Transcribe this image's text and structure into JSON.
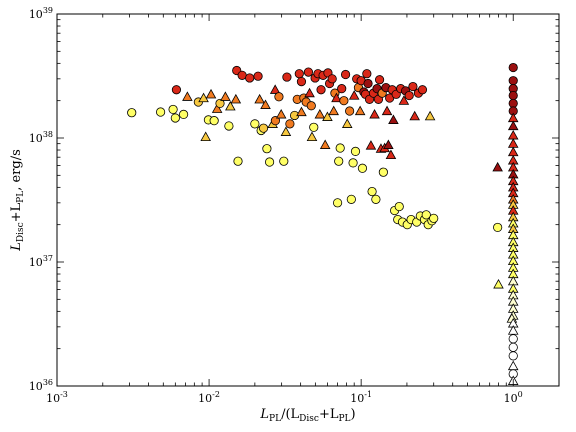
{
  "chart_data": {
    "type": "scatter",
    "title": "",
    "xscale": "log",
    "yscale": "log",
    "xlim": [
      0.001,
      2.0
    ],
    "ylim": [
      1e+36,
      1e+39
    ],
    "grid": false,
    "legend": "none",
    "xlabel": {
      "main": "L",
      "sub": "PL",
      "rest": "/(L",
      "sub2": "Disc",
      "rest2": "+L",
      "sub3": "PL",
      "rest3": ")"
    },
    "ylabel": {
      "p1": "L",
      "s1": "Disc",
      "p2": "+L",
      "s2": "PL",
      "p3": ", erg/s"
    },
    "xticks": [
      {
        "value": 0.001,
        "base": "10",
        "exp": "-3"
      },
      {
        "value": 0.01,
        "base": "10",
        "exp": "-2"
      },
      {
        "value": 0.1,
        "base": "10",
        "exp": "-1"
      },
      {
        "value": 1,
        "base": "10",
        "exp": "0"
      }
    ],
    "yticks": [
      {
        "value": 1e+36,
        "base": "10",
        "exp": "36"
      },
      {
        "value": 1e+37,
        "base": "10",
        "exp": "37"
      },
      {
        "value": 1e+38,
        "base": "10",
        "exp": "38"
      },
      {
        "value": 1e+39,
        "base": "10",
        "exp": "39"
      }
    ],
    "colors": {
      "dark_red": "#9b1010",
      "red": "#d92818",
      "orange": "#f07a20",
      "yellow_orange": "#f7c840",
      "yellow": "#ffff66",
      "pale": "#ffffd0",
      "white": "#ffffff"
    },
    "points": [
      {
        "x": 0.0031,
        "y": 1.6e+38,
        "m": "o",
        "c": "#ffff66"
      },
      {
        "x": 0.0048,
        "y": 1.62e+38,
        "m": "o",
        "c": "#ffff66"
      },
      {
        "x": 0.0058,
        "y": 1.7e+38,
        "m": "o",
        "c": "#ffff66"
      },
      {
        "x": 0.006,
        "y": 1.45e+38,
        "m": "o",
        "c": "#ffff66"
      },
      {
        "x": 0.0068,
        "y": 1.55e+38,
        "m": "o",
        "c": "#ffff66"
      },
      {
        "x": 0.0061,
        "y": 2.45e+38,
        "m": "o",
        "c": "#d92818"
      },
      {
        "x": 0.0072,
        "y": 2.15e+38,
        "m": "^",
        "c": "#f07a20"
      },
      {
        "x": 0.0085,
        "y": 1.95e+38,
        "m": "o",
        "c": "#f7c840"
      },
      {
        "x": 0.0092,
        "y": 2.1e+38,
        "m": "^",
        "c": "#f7c840"
      },
      {
        "x": 0.0095,
        "y": 1.02e+38,
        "m": "^",
        "c": "#f7c840"
      },
      {
        "x": 0.0099,
        "y": 1.4e+38,
        "m": "o",
        "c": "#ffff66"
      },
      {
        "x": 0.0103,
        "y": 2.25e+38,
        "m": "^",
        "c": "#f07a20"
      },
      {
        "x": 0.0108,
        "y": 1.38e+38,
        "m": "o",
        "c": "#ffff66"
      },
      {
        "x": 0.0113,
        "y": 1.72e+38,
        "m": "^",
        "c": "#f07a20"
      },
      {
        "x": 0.0118,
        "y": 1.9e+38,
        "m": "o",
        "c": "#f7c840"
      },
      {
        "x": 0.0128,
        "y": 2.15e+38,
        "m": "^",
        "c": "#f07a20"
      },
      {
        "x": 0.0138,
        "y": 1.8e+38,
        "m": "^",
        "c": "#f7c840"
      },
      {
        "x": 0.015,
        "y": 2.05e+38,
        "m": "^",
        "c": "#f07a20"
      },
      {
        "x": 0.0135,
        "y": 1.25e+38,
        "m": "o",
        "c": "#ffff66"
      },
      {
        "x": 0.0155,
        "y": 6.5e+37,
        "m": "o",
        "c": "#ffff66"
      },
      {
        "x": 0.0152,
        "y": 3.5e+38,
        "m": "o",
        "c": "#d92818"
      },
      {
        "x": 0.0165,
        "y": 3.2e+38,
        "m": "o",
        "c": "#d92818"
      },
      {
        "x": 0.0185,
        "y": 3.05e+38,
        "m": "o",
        "c": "#d92818"
      },
      {
        "x": 0.021,
        "y": 3.15e+38,
        "m": "o",
        "c": "#d92818"
      },
      {
        "x": 0.02,
        "y": 1.3e+38,
        "m": "o",
        "c": "#ffff66"
      },
      {
        "x": 0.022,
        "y": 1.15e+38,
        "m": "o",
        "c": "#ffff66"
      },
      {
        "x": 0.0215,
        "y": 2.05e+38,
        "m": "^",
        "c": "#f07a20"
      },
      {
        "x": 0.0228,
        "y": 1.2e+38,
        "m": "o",
        "c": "#f7c840"
      },
      {
        "x": 0.0235,
        "y": 1.85e+38,
        "m": "^",
        "c": "#f07a20"
      },
      {
        "x": 0.024,
        "y": 8.2e+37,
        "m": "o",
        "c": "#ffff66"
      },
      {
        "x": 0.025,
        "y": 6.4e+37,
        "m": "o",
        "c": "#ffff66"
      },
      {
        "x": 0.0262,
        "y": 1.3e+38,
        "m": "^",
        "c": "#f7c840"
      },
      {
        "x": 0.0272,
        "y": 2.45e+38,
        "m": "^",
        "c": "#d92818"
      },
      {
        "x": 0.0273,
        "y": 1.38e+38,
        "m": "o",
        "c": "#f07a20"
      },
      {
        "x": 0.0288,
        "y": 2.15e+38,
        "m": "o",
        "c": "#f07a20"
      },
      {
        "x": 0.0298,
        "y": 1.55e+38,
        "m": "^",
        "c": "#f07a20"
      },
      {
        "x": 0.031,
        "y": 6.5e+37,
        "m": "o",
        "c": "#ffff66"
      },
      {
        "x": 0.032,
        "y": 1.12e+38,
        "m": "^",
        "c": "#f7c840"
      },
      {
        "x": 0.0325,
        "y": 3.1e+38,
        "m": "o",
        "c": "#d92818"
      },
      {
        "x": 0.034,
        "y": 1.3e+38,
        "m": "o",
        "c": "#f07a20"
      },
      {
        "x": 0.0365,
        "y": 1.52e+38,
        "m": "o",
        "c": "#f7c840"
      },
      {
        "x": 0.038,
        "y": 2.05e+38,
        "m": "o",
        "c": "#f07a20"
      },
      {
        "x": 0.0392,
        "y": 3.3e+38,
        "m": "o",
        "c": "#d92818"
      },
      {
        "x": 0.0405,
        "y": 1.62e+38,
        "m": "^",
        "c": "#f07a20"
      },
      {
        "x": 0.0405,
        "y": 2.85e+38,
        "m": "o",
        "c": "#d92818"
      },
      {
        "x": 0.042,
        "y": 2.1e+38,
        "m": "o",
        "c": "#f07a20"
      },
      {
        "x": 0.0435,
        "y": 1.95e+38,
        "m": "o",
        "c": "#f07a20"
      },
      {
        "x": 0.045,
        "y": 3.4e+38,
        "m": "o",
        "c": "#d92818"
      },
      {
        "x": 0.0458,
        "y": 2.3e+38,
        "m": "^",
        "c": "#d92818"
      },
      {
        "x": 0.047,
        "y": 1.82e+38,
        "m": "o",
        "c": "#f07a20"
      },
      {
        "x": 0.0475,
        "y": 1.02e+38,
        "m": "^",
        "c": "#f7c840"
      },
      {
        "x": 0.0488,
        "y": 1.22e+38,
        "m": "o",
        "c": "#ffff66"
      },
      {
        "x": 0.0498,
        "y": 3.05e+38,
        "m": "o",
        "c": "#d92818"
      },
      {
        "x": 0.052,
        "y": 3.3e+38,
        "m": "o",
        "c": "#d92818"
      },
      {
        "x": 0.0535,
        "y": 1.55e+38,
        "m": "^",
        "c": "#f07a20"
      },
      {
        "x": 0.0545,
        "y": 2.45e+38,
        "m": "o",
        "c": "#d92818"
      },
      {
        "x": 0.0562,
        "y": 3.2e+38,
        "m": "o",
        "c": "#d92818"
      },
      {
        "x": 0.058,
        "y": 8.8e+37,
        "m": "^",
        "c": "#f07a20"
      },
      {
        "x": 0.06,
        "y": 1.48e+38,
        "m": "^",
        "c": "#f7c840"
      },
      {
        "x": 0.062,
        "y": 2.75e+38,
        "m": "o",
        "c": "#d92818"
      },
      {
        "x": 0.0605,
        "y": 3.35e+38,
        "m": "o",
        "c": "#d92818"
      },
      {
        "x": 0.0645,
        "y": 3e+38,
        "m": "o",
        "c": "#d92818"
      },
      {
        "x": 0.066,
        "y": 1.65e+38,
        "m": "^",
        "c": "#f07a20"
      },
      {
        "x": 0.0672,
        "y": 2.3e+38,
        "m": "o",
        "c": "#f07a20"
      },
      {
        "x": 0.0688,
        "y": 2.1e+38,
        "m": "^",
        "c": "#d92818"
      },
      {
        "x": 0.07,
        "y": 3e+37,
        "m": "o",
        "c": "#ffff66"
      },
      {
        "x": 0.0712,
        "y": 6.5e+37,
        "m": "o",
        "c": "#ffff66"
      },
      {
        "x": 0.0728,
        "y": 8.3e+37,
        "m": "o",
        "c": "#ffff66"
      },
      {
        "x": 0.0745,
        "y": 2.5e+38,
        "m": "o",
        "c": "#d92818"
      },
      {
        "x": 0.077,
        "y": 2e+38,
        "m": "o",
        "c": "#f07a20"
      },
      {
        "x": 0.079,
        "y": 3.25e+38,
        "m": "o",
        "c": "#d92818"
      },
      {
        "x": 0.081,
        "y": 1.3e+38,
        "m": "^",
        "c": "#f7c840"
      },
      {
        "x": 0.084,
        "y": 1.65e+38,
        "m": "o",
        "c": "#f07a20"
      },
      {
        "x": 0.0862,
        "y": 3.2e+37,
        "m": "o",
        "c": "#ffff66"
      },
      {
        "x": 0.0885,
        "y": 6.3e+37,
        "m": "o",
        "c": "#ffff66"
      },
      {
        "x": 0.09,
        "y": 2.2e+38,
        "m": "^",
        "c": "#d92818"
      },
      {
        "x": 0.0918,
        "y": 7.8e+37,
        "m": "o",
        "c": "#ffff66"
      },
      {
        "x": 0.0935,
        "y": 3e+38,
        "m": "o",
        "c": "#d92818"
      },
      {
        "x": 0.096,
        "y": 2.55e+38,
        "m": "o",
        "c": "#f07a20"
      },
      {
        "x": 0.0985,
        "y": 1.65e+38,
        "m": "^",
        "c": "#f07a20"
      },
      {
        "x": 0.1,
        "y": 2.9e+38,
        "m": "o",
        "c": "#d92818"
      },
      {
        "x": 0.102,
        "y": 5.7e+37,
        "m": "o",
        "c": "#ffff66"
      },
      {
        "x": 0.1042,
        "y": 2.35e+38,
        "m": "o",
        "c": "#9b1010"
      },
      {
        "x": 0.1068,
        "y": 2.25e+38,
        "m": "o",
        "c": "#d92818"
      },
      {
        "x": 0.109,
        "y": 3.3e+38,
        "m": "o",
        "c": "#d92818"
      },
      {
        "x": 0.111,
        "y": 2.75e+38,
        "m": "o",
        "c": "#9b1010"
      },
      {
        "x": 0.1135,
        "y": 2.05e+38,
        "m": "o",
        "c": "#d92818"
      },
      {
        "x": 0.116,
        "y": 8.7e+37,
        "m": "^",
        "c": "#d92818"
      },
      {
        "x": 0.118,
        "y": 3.7e+37,
        "m": "o",
        "c": "#ffff66"
      },
      {
        "x": 0.1205,
        "y": 2.3e+38,
        "m": "o",
        "c": "#d92818"
      },
      {
        "x": 0.1225,
        "y": 1.55e+38,
        "m": "^",
        "c": "#d92818"
      },
      {
        "x": 0.125,
        "y": 3.2e+37,
        "m": "o",
        "c": "#ffff66"
      },
      {
        "x": 0.1272,
        "y": 2.5e+38,
        "m": "o",
        "c": "#9b1010"
      },
      {
        "x": 0.13,
        "y": 2.05e+38,
        "m": "o",
        "c": "#d92818"
      },
      {
        "x": 0.1322,
        "y": 2.95e+38,
        "m": "o",
        "c": "#d92818"
      },
      {
        "x": 0.135,
        "y": 8.2e+37,
        "m": "^",
        "c": "#d92818"
      },
      {
        "x": 0.1375,
        "y": 2.3e+38,
        "m": "o",
        "c": "#f07a20"
      },
      {
        "x": 0.14,
        "y": 5.3e+37,
        "m": "o",
        "c": "#ffff66"
      },
      {
        "x": 0.1428,
        "y": 8.3e+37,
        "m": "^",
        "c": "#d92818"
      },
      {
        "x": 0.1455,
        "y": 2.55e+38,
        "m": "o",
        "c": "#9b1010"
      },
      {
        "x": 0.148,
        "y": 1.65e+38,
        "m": "^",
        "c": "#d92818"
      },
      {
        "x": 0.151,
        "y": 8.8e+37,
        "m": "^",
        "c": "#9b1010"
      },
      {
        "x": 0.154,
        "y": 2.1e+38,
        "m": "o",
        "c": "#d92818"
      },
      {
        "x": 0.157,
        "y": 7.3e+37,
        "m": "^",
        "c": "#d92818"
      },
      {
        "x": 0.16,
        "y": 2.45e+38,
        "m": "o",
        "c": "#d92818"
      },
      {
        "x": 0.163,
        "y": 1.4e+38,
        "m": "^",
        "c": "#9b1010"
      },
      {
        "x": 0.166,
        "y": 2.6e+37,
        "m": "o",
        "c": "#ffff66"
      },
      {
        "x": 0.17,
        "y": 2.25e+38,
        "m": "o",
        "c": "#d92818"
      },
      {
        "x": 0.174,
        "y": 2.2e+37,
        "m": "o",
        "c": "#ffff66"
      },
      {
        "x": 0.178,
        "y": 2.8e+37,
        "m": "o",
        "c": "#ffff66"
      },
      {
        "x": 0.182,
        "y": 2.5e+38,
        "m": "o",
        "c": "#d92818"
      },
      {
        "x": 0.187,
        "y": 2.1e+37,
        "m": "o",
        "c": "#ffff66"
      },
      {
        "x": 0.191,
        "y": 2e+38,
        "m": "^",
        "c": "#d92818"
      },
      {
        "x": 0.196,
        "y": 2.4e+38,
        "m": "o",
        "c": "#9b1010"
      },
      {
        "x": 0.201,
        "y": 2e+37,
        "m": "o",
        "c": "#ffff66"
      },
      {
        "x": 0.207,
        "y": 2.2e+38,
        "m": "o",
        "c": "#d92818"
      },
      {
        "x": 0.213,
        "y": 2.2e+37,
        "m": "o",
        "c": "#ffff66"
      },
      {
        "x": 0.219,
        "y": 2.6e+38,
        "m": "o",
        "c": "#d92818"
      },
      {
        "x": 0.225,
        "y": 1.5e+38,
        "m": "^",
        "c": "#d92818"
      },
      {
        "x": 0.232,
        "y": 2.1e+37,
        "m": "o",
        "c": "#ffff66"
      },
      {
        "x": 0.238,
        "y": 2.3e+38,
        "m": "o",
        "c": "#d92818"
      },
      {
        "x": 0.245,
        "y": 2.35e+37,
        "m": "o",
        "c": "#ffff66"
      },
      {
        "x": 0.253,
        "y": 2.45e+38,
        "m": "o",
        "c": "#d92818"
      },
      {
        "x": 0.261,
        "y": 2.2e+37,
        "m": "o",
        "c": "#ffff66"
      },
      {
        "x": 0.268,
        "y": 2.4e+37,
        "m": "o",
        "c": "#ffff66"
      },
      {
        "x": 0.276,
        "y": 2e+37,
        "m": "o",
        "c": "#ffff66"
      },
      {
        "x": 0.284,
        "y": 1.5e+38,
        "m": "^",
        "c": "#f7c840"
      },
      {
        "x": 0.292,
        "y": 2.15e+37,
        "m": "o",
        "c": "#ffff66"
      },
      {
        "x": 0.3,
        "y": 2.25e+37,
        "m": "o",
        "c": "#ffff66"
      },
      {
        "x": 0.79,
        "y": 1.9e+37,
        "m": "o",
        "c": "#ffff66"
      },
      {
        "x": 1,
        "y": 3.7e+38,
        "m": "o",
        "c": "#9b1010"
      },
      {
        "x": 1,
        "y": 2.9e+38,
        "m": "o",
        "c": "#9b1010"
      },
      {
        "x": 1,
        "y": 2.5e+38,
        "m": "o",
        "c": "#9b1010"
      },
      {
        "x": 1,
        "y": 2.2e+38,
        "m": "o",
        "c": "#9b1010"
      },
      {
        "x": 1,
        "y": 1.9e+38,
        "m": "o",
        "c": "#9b1010"
      },
      {
        "x": 1,
        "y": 1.65e+38,
        "m": "o",
        "c": "#9b1010"
      },
      {
        "x": 1,
        "y": 1.45e+38,
        "m": "^",
        "c": "#d92818"
      },
      {
        "x": 1,
        "y": 1.25e+38,
        "m": "^",
        "c": "#9b1010"
      },
      {
        "x": 1,
        "y": 1.05e+38,
        "m": "^",
        "c": "#d92818"
      },
      {
        "x": 1,
        "y": 9e+37,
        "m": "^",
        "c": "#d92818"
      },
      {
        "x": 1,
        "y": 7.7e+37,
        "m": "^",
        "c": "#d92818"
      },
      {
        "x": 1,
        "y": 6.6e+37,
        "m": "^",
        "c": "#d92818"
      },
      {
        "x": 1,
        "y": 5.8e+37,
        "m": "^",
        "c": "#d92818"
      },
      {
        "x": 1,
        "y": 5.1e+37,
        "m": "^",
        "c": "#9b1010"
      },
      {
        "x": 1,
        "y": 4.5e+37,
        "m": "^",
        "c": "#d92818"
      },
      {
        "x": 1,
        "y": 4e+37,
        "m": "^",
        "c": "#d92818"
      },
      {
        "x": 0.79,
        "y": 5.8e+37,
        "m": "^",
        "c": "#9b1010"
      },
      {
        "x": 1,
        "y": 3.6e+37,
        "m": "^",
        "c": "#d92818"
      },
      {
        "x": 1,
        "y": 3.2e+37,
        "m": "^",
        "c": "#f07a20"
      },
      {
        "x": 1,
        "y": 2.9e+37,
        "m": "^",
        "c": "#f7c840"
      },
      {
        "x": 1,
        "y": 2.6e+37,
        "m": "^",
        "c": "#d92818"
      },
      {
        "x": 1,
        "y": 2.3e+37,
        "m": "^",
        "c": "#f7c840"
      },
      {
        "x": 1,
        "y": 2.05e+37,
        "m": "^",
        "c": "#ffff66"
      },
      {
        "x": 1,
        "y": 1.85e+37,
        "m": "^",
        "c": "#f7c840"
      },
      {
        "x": 1,
        "y": 1.65e+37,
        "m": "^",
        "c": "#ffff66"
      },
      {
        "x": 1,
        "y": 1.45e+37,
        "m": "^",
        "c": "#ffff66"
      },
      {
        "x": 1,
        "y": 1.3e+37,
        "m": "^",
        "c": "#ffff66"
      },
      {
        "x": 1,
        "y": 1.15e+37,
        "m": "^",
        "c": "#ffff66"
      },
      {
        "x": 1,
        "y": 1.02e+37,
        "m": "^",
        "c": "#ffff66"
      },
      {
        "x": 1,
        "y": 9e+36,
        "m": "^",
        "c": "#ffff66"
      },
      {
        "x": 1,
        "y": 8e+36,
        "m": "^",
        "c": "#ffff66"
      },
      {
        "x": 1,
        "y": 7e+36,
        "m": "^",
        "c": "#ffffd0"
      },
      {
        "x": 1,
        "y": 6.1e+36,
        "m": "^",
        "c": "#ffff66"
      },
      {
        "x": 0.8,
        "y": 6.6e+36,
        "m": "^",
        "c": "#ffff66"
      },
      {
        "x": 1,
        "y": 5.4e+36,
        "m": "^",
        "c": "#ffffd0"
      },
      {
        "x": 1,
        "y": 4.8e+36,
        "m": "^",
        "c": "#ffffd0"
      },
      {
        "x": 1,
        "y": 4.2e+36,
        "m": "^",
        "c": "#ffffd0"
      },
      {
        "x": 1,
        "y": 3.7e+36,
        "m": "^",
        "c": "#ffffd0"
      },
      {
        "x": 0.98,
        "y": 3.5e+36,
        "m": "^",
        "c": "#ffffd0"
      },
      {
        "x": 1,
        "y": 3.2e+36,
        "m": "^",
        "c": "#ffffff"
      },
      {
        "x": 1,
        "y": 2.8e+36,
        "m": "^",
        "c": "#ffffff"
      },
      {
        "x": 1,
        "y": 2.4e+36,
        "m": "o",
        "c": "#ffffff"
      },
      {
        "x": 1,
        "y": 2.05e+36,
        "m": "o",
        "c": "#ffffff"
      },
      {
        "x": 1,
        "y": 1.75e+36,
        "m": "o",
        "c": "#ffffff"
      },
      {
        "x": 1,
        "y": 1.45e+36,
        "m": "^",
        "c": "#ffffff"
      },
      {
        "x": 1,
        "y": 1.25e+36,
        "m": "o",
        "c": "#ffffff"
      },
      {
        "x": 1,
        "y": 1.1e+36,
        "m": "^",
        "c": "#ffffff"
      }
    ]
  }
}
